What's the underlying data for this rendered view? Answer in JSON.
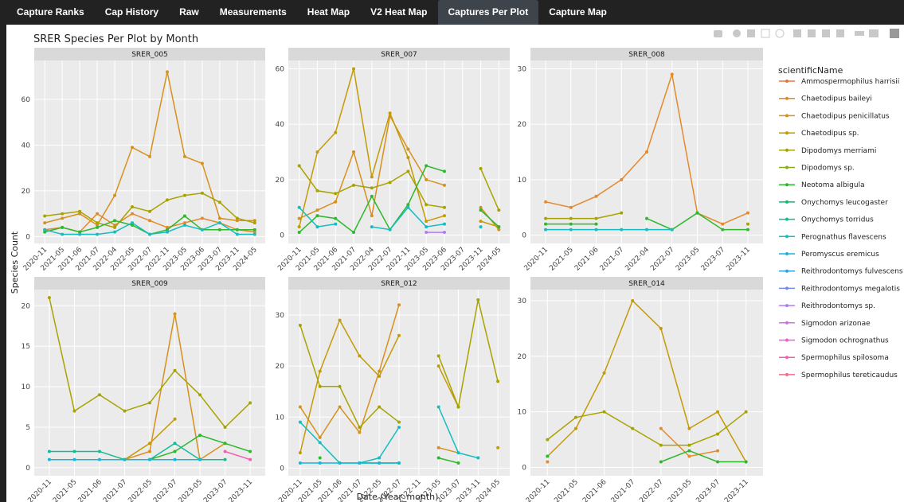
{
  "tabs": [
    "Capture Ranks",
    "Cap History",
    "Raw",
    "Measurements",
    "Heat Map",
    "V2 Heat Map",
    "Captures Per Plot",
    "Capture Map"
  ],
  "active_tab": 6,
  "chart_data": {
    "type": "line",
    "title": "SRER Species Per Plot by Month",
    "x_label": "Date (Year_month)",
    "y_label": "Species Count",
    "legend_title": "scientificName",
    "series": [
      {
        "name": "Ammospermophilus harrisii",
        "color": "#E8743B"
      },
      {
        "name": "Chaetodipus baileyi",
        "color": "#E38A2D"
      },
      {
        "name": "Chaetodipus penicillatus",
        "color": "#D7901D"
      },
      {
        "name": "Chaetodipus sp.",
        "color": "#C49A06"
      },
      {
        "name": "Dipodomys merriami",
        "color": "#A8A300"
      },
      {
        "name": "Dipodomys sp.",
        "color": "#87AE16"
      },
      {
        "name": "Neotoma albigula",
        "color": "#2DB82D"
      },
      {
        "name": "Onychomys leucogaster",
        "color": "#11B86B"
      },
      {
        "name": "Onychomys torridus",
        "color": "#13BC95"
      },
      {
        "name": "Perognathus flavescens",
        "color": "#14BDC0"
      },
      {
        "name": "Peromyscus eremicus",
        "color": "#16B6DA"
      },
      {
        "name": "Reithrodontomys fulvescens",
        "color": "#2EA3E6"
      },
      {
        "name": "Reithrodontomys megalotis",
        "color": "#6E8FF0"
      },
      {
        "name": "Reithrodontomys sp.",
        "color": "#B07DF0"
      },
      {
        "name": "Sigmodon arizonae",
        "color": "#D26DE4"
      },
      {
        "name": "Sigmodon ochrognathus",
        "color": "#E960CE"
      },
      {
        "name": "Spermophilus spilosoma",
        "color": "#F25FAE"
      },
      {
        "name": "Spermophilus tereticaudus",
        "color": "#F26C8A"
      }
    ],
    "panels": [
      {
        "title": "SRER_005",
        "categories": [
          "2020-11",
          "2021-05",
          "2021-06",
          "2021-07",
          "2022-04",
          "2022-05",
          "2022-07",
          "2022-11",
          "2023-05",
          "2023-06",
          "2023-07",
          "2023-11",
          "2024-05"
        ],
        "ylim": [
          -3,
          77
        ],
        "yticks": [
          0,
          20,
          40,
          60
        ],
        "values": [
          null,
          [
            3,
            4,
            2,
            10,
            5,
            10,
            7,
            4,
            6,
            8,
            6,
            3,
            2
          ],
          [
            6,
            8,
            10,
            5,
            18,
            39,
            35,
            72,
            35,
            32,
            8,
            7,
            7
          ],
          null,
          [
            9,
            10,
            11,
            6,
            4,
            13,
            11,
            16,
            18,
            19,
            15,
            8,
            6
          ],
          null,
          [
            2,
            4,
            2,
            4,
            7,
            5,
            1,
            3,
            9,
            3,
            3,
            3,
            3
          ],
          null,
          null,
          [
            3,
            1,
            1,
            1,
            2,
            6,
            1,
            2,
            5,
            3,
            6,
            1,
            1
          ],
          null,
          null,
          null,
          null,
          null,
          null,
          null,
          null
        ]
      },
      {
        "title": "SRER_007",
        "categories": [
          "2020-11",
          "2021-05",
          "2021-06",
          "2021-07",
          "2022-04",
          "2022-07",
          "2022-11",
          "2023-05",
          "2023-06",
          "2023-07",
          "2023-11",
          "2024-05"
        ],
        "ylim": [
          -3,
          63
        ],
        "yticks": [
          0,
          20,
          40,
          60
        ],
        "values": [
          null,
          null,
          [
            6,
            9,
            12,
            30,
            7,
            43,
            31,
            20,
            18,
            null,
            10,
            2
          ],
          [
            3,
            30,
            37,
            60,
            21,
            44,
            28,
            5,
            7,
            null,
            5,
            3
          ],
          [
            25,
            16,
            15,
            18,
            17,
            19,
            23,
            11,
            10,
            null,
            24,
            9
          ],
          null,
          [
            1,
            7,
            6,
            1,
            14,
            2,
            11,
            25,
            23,
            null,
            9,
            3
          ],
          null,
          null,
          [
            10,
            3,
            4,
            null,
            3,
            2,
            10,
            3,
            4,
            null,
            3,
            null
          ],
          null,
          null,
          null,
          [
            null,
            null,
            null,
            null,
            null,
            null,
            null,
            1,
            1,
            null,
            null,
            null
          ],
          null,
          null,
          null,
          null
        ]
      },
      {
        "title": "SRER_008",
        "categories": [
          "2020-11",
          "2021-05",
          "2021-06",
          "2021-07",
          "2022-04",
          "2022-07",
          "2023-05",
          "2023-07",
          "2023-11"
        ],
        "ylim": [
          -1.5,
          31.5
        ],
        "yticks": [
          0,
          10,
          20,
          30
        ],
        "values": [
          null,
          [
            6,
            5,
            7,
            10,
            15,
            29,
            4,
            2,
            4
          ],
          null,
          null,
          [
            3,
            3,
            3,
            4,
            null,
            null,
            4,
            null,
            2
          ],
          null,
          [
            2,
            2,
            2,
            null,
            3,
            1,
            4,
            1,
            1
          ],
          null,
          null,
          [
            1,
            1,
            1,
            1,
            1,
            1,
            null,
            null,
            null
          ],
          null,
          null,
          null,
          null,
          null,
          null,
          null,
          null
        ]
      },
      {
        "title": "SRER_009",
        "categories": [
          "2020-11",
          "2021-05",
          "2021-06",
          "2021-07",
          "2022-05",
          "2022-07",
          "2023-05",
          "2023-07",
          "2023-11"
        ],
        "ylim": [
          -1,
          22
        ],
        "yticks": [
          0,
          5,
          10,
          15,
          20
        ],
        "values": [
          null,
          null,
          [
            null,
            null,
            null,
            1,
            2,
            19,
            1,
            3,
            null
          ],
          [
            null,
            null,
            null,
            1,
            3,
            6,
            null,
            null,
            null
          ],
          [
            21,
            7,
            9,
            7,
            8,
            12,
            9,
            5,
            8
          ],
          null,
          [
            null,
            null,
            null,
            null,
            1,
            2,
            4,
            3,
            2
          ],
          null,
          [
            2,
            2,
            2,
            1,
            1,
            3,
            1,
            1,
            null
          ],
          null,
          [
            1,
            1,
            1,
            1,
            1,
            1,
            1,
            null,
            null
          ],
          null,
          null,
          null,
          null,
          null,
          [
            null,
            null,
            null,
            null,
            null,
            null,
            null,
            2,
            1
          ],
          null
        ]
      },
      {
        "title": "SRER_012",
        "categories": [
          "2020-11",
          "2021-05",
          "2021-06",
          "2021-07",
          "2022-05",
          "2022-07",
          "2022-11",
          "2023-05",
          "2023-07",
          "2023-11",
          "2024-05"
        ],
        "ylim": [
          -1.5,
          35
        ],
        "yticks": [
          0,
          10,
          20,
          30
        ],
        "values": [
          null,
          null,
          [
            12,
            6,
            12,
            7,
            19,
            32,
            null,
            4,
            3,
            null,
            null
          ],
          [
            3,
            19,
            29,
            22,
            18,
            26,
            null,
            20,
            12,
            null,
            4
          ],
          [
            28,
            16,
            16,
            8,
            12,
            9,
            null,
            22,
            12,
            33,
            17
          ],
          null,
          [
            null,
            2,
            null,
            1,
            1,
            1,
            null,
            2,
            1,
            null,
            null
          ],
          null,
          null,
          [
            9,
            5,
            1,
            1,
            2,
            8,
            null,
            12,
            3,
            2,
            null
          ],
          [
            1,
            1,
            1,
            1,
            1,
            1,
            null,
            null,
            null,
            null,
            null
          ],
          null,
          null,
          null,
          null,
          null,
          null,
          null
        ]
      },
      {
        "title": "SRER_014",
        "categories": [
          "2020-11",
          "2021-05",
          "2021-06",
          "2021-07",
          "2022-07",
          "2023-05",
          "2023-07",
          "2023-11"
        ],
        "ylim": [
          -1.5,
          32
        ],
        "yticks": [
          0,
          10,
          20,
          30
        ],
        "values": [
          null,
          [
            1,
            null,
            null,
            null,
            7,
            2,
            3,
            null
          ],
          null,
          [
            2,
            7,
            17,
            30,
            25,
            7,
            10,
            1
          ],
          [
            5,
            9,
            10,
            7,
            4,
            4,
            6,
            10
          ],
          null,
          [
            2,
            null,
            null,
            null,
            1,
            3,
            1,
            1
          ],
          null,
          null,
          null,
          null,
          null,
          null,
          null,
          null,
          null,
          null,
          null
        ]
      }
    ]
  }
}
